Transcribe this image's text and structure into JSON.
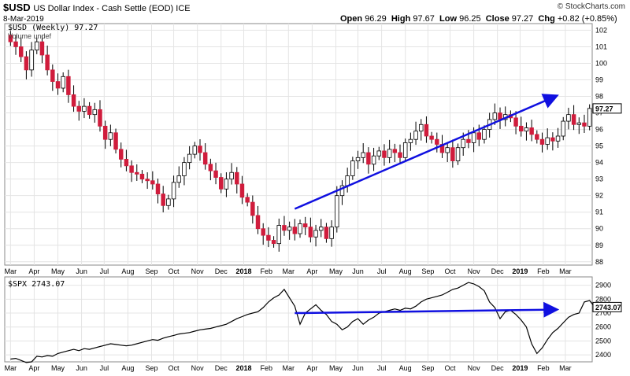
{
  "header": {
    "symbol": "$USD",
    "description": "US Dollar Index - Cash Settle (EOD) ICE",
    "date": "8-Mar-2019",
    "logo": "© StockCharts.com",
    "open_label": "Open",
    "open": "96.29",
    "high_label": "High",
    "high": "97.67",
    "low_label": "Low",
    "low": "96.25",
    "close_label": "Close",
    "close": "97.27",
    "chg_label": "Chg",
    "chg": "+0.82 (+0.85%)"
  },
  "upper_legend": {
    "series": "$USD (Weekly) 97.27",
    "volume": "Volume undef"
  },
  "lower_legend": {
    "series": "$SPX 2743.07"
  },
  "x_axis_labels": [
    {
      "label": "Mar",
      "w": 0
    },
    {
      "label": "Apr",
      "w": 4.5
    },
    {
      "label": "May",
      "w": 9
    },
    {
      "label": "Jun",
      "w": 13.5
    },
    {
      "label": "Jul",
      "w": 17.8
    },
    {
      "label": "Aug",
      "w": 22.3
    },
    {
      "label": "Sep",
      "w": 26.8
    },
    {
      "label": "Oct",
      "w": 31
    },
    {
      "label": "Nov",
      "w": 35.5
    },
    {
      "label": "Dec",
      "w": 40
    },
    {
      "label": "2018",
      "w": 44.3,
      "bold": true
    },
    {
      "label": "Feb",
      "w": 48.6
    },
    {
      "label": "Mar",
      "w": 52.8
    },
    {
      "label": "Apr",
      "w": 57.3
    },
    {
      "label": "May",
      "w": 61.8
    },
    {
      "label": "Jun",
      "w": 66
    },
    {
      "label": "Jul",
      "w": 70.5
    },
    {
      "label": "Aug",
      "w": 75
    },
    {
      "label": "Sep",
      "w": 79.3
    },
    {
      "label": "Oct",
      "w": 83.5
    },
    {
      "label": "Nov",
      "w": 88
    },
    {
      "label": "Dec",
      "w": 92.5
    },
    {
      "label": "2019",
      "w": 96.8,
      "bold": true
    },
    {
      "label": "Feb",
      "w": 101.2
    },
    {
      "label": "Mar",
      "w": 105.4
    }
  ],
  "chart_data": [
    {
      "type": "candlestick",
      "title": "$USD (Weekly) 97.27",
      "ylim": [
        87.8,
        102.4
      ],
      "yticks": [
        88,
        89,
        90,
        91,
        92,
        93,
        94,
        95,
        96,
        97,
        98,
        99,
        100,
        101,
        102
      ],
      "last_value_label": "97.27",
      "trendline": {
        "from": {
          "week": 54,
          "value": 91.2
        },
        "to": {
          "week": 103.5,
          "value": 98.0
        },
        "color": "#1010e0"
      },
      "closes": [
        101.3,
        101.0,
        100.4,
        99.6,
        100.8,
        101.3,
        100.5,
        99.6,
        98.9,
        98.5,
        99.2,
        98.1,
        97.4,
        97.1,
        97.4,
        96.9,
        97.2,
        96.2,
        95.4,
        95.8,
        94.8,
        94.2,
        93.8,
        93.4,
        93.3,
        93.0,
        92.9,
        92.7,
        92.1,
        91.4,
        91.8,
        92.8,
        93.2,
        94.0,
        94.5,
        95.0,
        94.6,
        93.9,
        93.5,
        93.1,
        92.4,
        93.0,
        93.4,
        92.7,
        91.9,
        91.6,
        90.8,
        90.0,
        89.6,
        89.3,
        89.1,
        90.2,
        89.9,
        90.1,
        89.7,
        90.3,
        90.1,
        89.5,
        89.9,
        90.1,
        89.4,
        90.1,
        92.0,
        92.6,
        93.2,
        94.1,
        94.3,
        94.6,
        93.9,
        94.4,
        94.7,
        94.3,
        94.8,
        94.6,
        94.3,
        95.2,
        95.4,
        95.9,
        96.3,
        95.6,
        95.4,
        95.1,
        94.6,
        94.9,
        94.1,
        94.9,
        95.4,
        95.2,
        95.8,
        95.4,
        96.0,
        96.6,
        97.0,
        96.6,
        96.9,
        96.7,
        96.2,
        95.9,
        96.1,
        95.7,
        95.4,
        95.1,
        95.5,
        95.3,
        95.6,
        96.5,
        96.9,
        96.3,
        96.4,
        96.2,
        97.27
      ]
    },
    {
      "type": "line",
      "title": "$SPX 2743.07",
      "ylim": [
        2350,
        2960
      ],
      "yticks": [
        2400,
        2500,
        2600,
        2700,
        2800,
        2900
      ],
      "last_value_label": "2743.07",
      "trendline": {
        "from": {
          "week": 54,
          "value": 2700
        },
        "to": {
          "week": 103.5,
          "value": 2725
        },
        "color": "#1010e0"
      },
      "values": [
        2370,
        2375,
        2360,
        2345,
        2350,
        2390,
        2385,
        2395,
        2390,
        2410,
        2420,
        2430,
        2440,
        2430,
        2445,
        2440,
        2450,
        2460,
        2470,
        2480,
        2475,
        2470,
        2465,
        2470,
        2480,
        2490,
        2500,
        2510,
        2505,
        2520,
        2530,
        2540,
        2550,
        2555,
        2560,
        2570,
        2580,
        2585,
        2590,
        2600,
        2610,
        2620,
        2640,
        2660,
        2675,
        2690,
        2700,
        2710,
        2740,
        2780,
        2810,
        2830,
        2870,
        2810,
        2750,
        2620,
        2700,
        2730,
        2760,
        2720,
        2690,
        2640,
        2620,
        2580,
        2600,
        2640,
        2660,
        2620,
        2650,
        2670,
        2700,
        2710,
        2720,
        2730,
        2720,
        2735,
        2730,
        2750,
        2780,
        2800,
        2810,
        2820,
        2830,
        2850,
        2870,
        2880,
        2900,
        2920,
        2910,
        2890,
        2860,
        2780,
        2740,
        2660,
        2710,
        2720,
        2690,
        2650,
        2600,
        2480,
        2410,
        2450,
        2510,
        2560,
        2590,
        2630,
        2670,
        2690,
        2700,
        2780,
        2790,
        2743.07
      ]
    }
  ]
}
